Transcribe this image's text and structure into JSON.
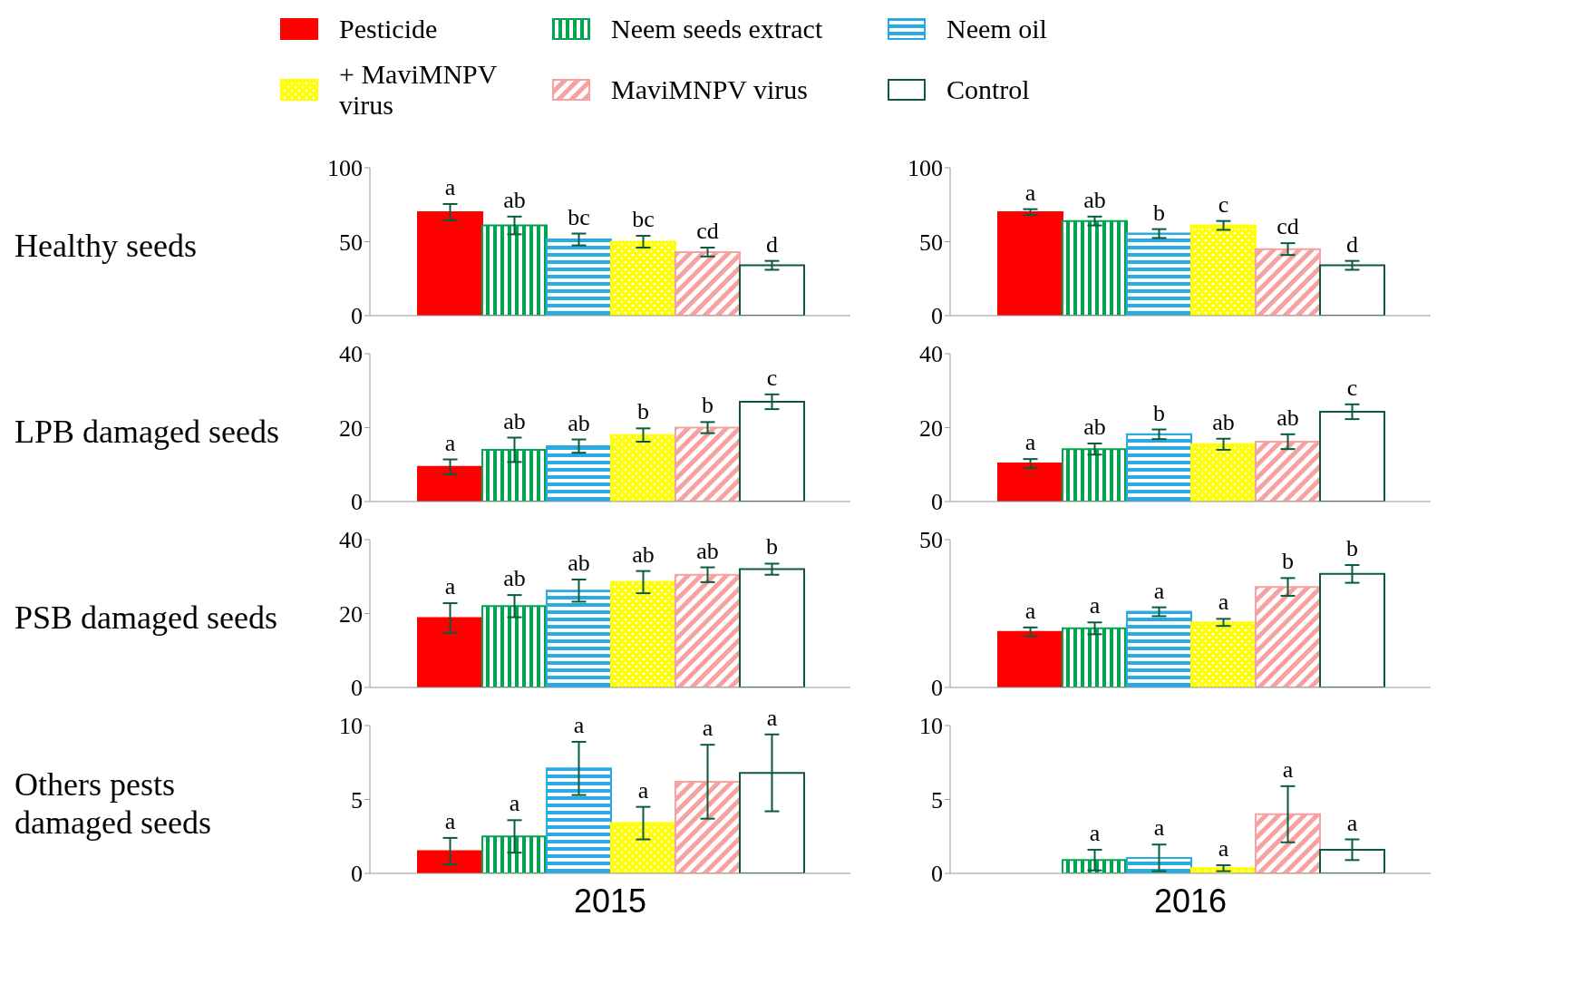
{
  "chart_data": [
    {
      "type": "bar",
      "ylabel": "Healthy seeds",
      "legend": "top",
      "tick_labels": "y",
      "categories": [
        null
      ],
      "ylim": [
        0,
        100
      ],
      "yticks": [
        0,
        50,
        100
      ],
      "series": [
        {
          "name": "Pesticide",
          "color": "#ff0000",
          "values": [
            70
          ],
          "errors": [
            5.5
          ],
          "value_labels": [
            "a"
          ]
        },
        {
          "name": "Neem seeds extract",
          "color": "#00a550",
          "values": [
            61
          ],
          "errors": [
            6
          ],
          "value_labels": [
            "ab"
          ]
        },
        {
          "name": "Neem oil",
          "color": "#29abe2",
          "values": [
            51.5
          ],
          "errors": [
            4
          ],
          "value_labels": [
            "bc"
          ]
        },
        {
          "name": "+ MaviMNPV virus",
          "color": "#ffff00",
          "values": [
            50
          ],
          "errors": [
            4
          ],
          "value_labels": [
            "bc"
          ]
        },
        {
          "name": "MaviMNPV virus",
          "color": "#f7a1a1",
          "values": [
            43
          ],
          "errors": [
            3
          ],
          "value_labels": [
            "cd"
          ]
        },
        {
          "name": "Control",
          "color": "#0b5a3e",
          "values": [
            34
          ],
          "errors": [
            3
          ],
          "value_labels": [
            "d"
          ]
        }
      ]
    },
    {
      "type": "bar",
      "tick_labels": "y",
      "categories": [
        null
      ],
      "ylim": [
        0,
        100
      ],
      "yticks": [
        0,
        50,
        100
      ],
      "series": [
        {
          "color": "#ff0000",
          "values": [
            70
          ],
          "errors": [
            2
          ],
          "value_labels": [
            "a"
          ]
        },
        {
          "color": "#00a550",
          "values": [
            64
          ],
          "errors": [
            3
          ],
          "value_labels": [
            "ab"
          ]
        },
        {
          "color": "#29abe2",
          "values": [
            55.5
          ],
          "errors": [
            3
          ],
          "value_labels": [
            "b"
          ]
        },
        {
          "color": "#ffff00",
          "values": [
            61
          ],
          "errors": [
            3
          ],
          "value_labels": [
            "c"
          ]
        },
        {
          "color": "#f7a1a1",
          "values": [
            45
          ],
          "errors": [
            4
          ],
          "value_labels": [
            "cd"
          ]
        },
        {
          "color": "#0b5a3e",
          "values": [
            34
          ],
          "errors": [
            3
          ],
          "value_labels": [
            "d"
          ]
        }
      ]
    },
    {
      "type": "bar",
      "ylabel": "LPB damaged seeds",
      "tick_labels": "y",
      "categories": [
        null
      ],
      "ylim": [
        0,
        40
      ],
      "yticks": [
        0,
        20,
        40
      ],
      "series": [
        {
          "color": "#ff0000",
          "values": [
            9.4
          ],
          "errors": [
            2
          ],
          "value_labels": [
            "a"
          ]
        },
        {
          "color": "#00a550",
          "values": [
            14
          ],
          "errors": [
            3.3
          ],
          "value_labels": [
            "ab"
          ]
        },
        {
          "color": "#29abe2",
          "values": [
            15
          ],
          "errors": [
            1.8
          ],
          "value_labels": [
            "ab"
          ]
        },
        {
          "color": "#ffff00",
          "values": [
            18
          ],
          "errors": [
            1.8
          ],
          "value_labels": [
            "b"
          ]
        },
        {
          "color": "#f7a1a1",
          "values": [
            20
          ],
          "errors": [
            1.5
          ],
          "value_labels": [
            "b"
          ]
        },
        {
          "color": "#0b5a3e",
          "values": [
            27
          ],
          "errors": [
            2
          ],
          "value_labels": [
            "c"
          ]
        }
      ]
    },
    {
      "type": "bar",
      "tick_labels": "y",
      "categories": [
        null
      ],
      "ylim": [
        0,
        40
      ],
      "yticks": [
        0,
        20,
        40
      ],
      "series": [
        {
          "color": "#ff0000",
          "values": [
            10.3
          ],
          "errors": [
            1.2
          ],
          "value_labels": [
            "a"
          ]
        },
        {
          "color": "#00a550",
          "values": [
            14.2
          ],
          "errors": [
            1.5
          ],
          "value_labels": [
            "ab"
          ]
        },
        {
          "color": "#29abe2",
          "values": [
            18.2
          ],
          "errors": [
            1.3
          ],
          "value_labels": [
            "b"
          ]
        },
        {
          "color": "#ffff00",
          "values": [
            15.5
          ],
          "errors": [
            1.5
          ],
          "value_labels": [
            "ab"
          ]
        },
        {
          "color": "#f7a1a1",
          "values": [
            16.2
          ],
          "errors": [
            2
          ],
          "value_labels": [
            "ab"
          ]
        },
        {
          "color": "#0b5a3e",
          "values": [
            24.3
          ],
          "errors": [
            2
          ],
          "value_labels": [
            "c"
          ]
        }
      ]
    },
    {
      "type": "bar",
      "ylabel": "PSB damaged seeds",
      "tick_labels": "y",
      "categories": [
        null
      ],
      "ylim": [
        0,
        40
      ],
      "yticks": [
        0,
        20,
        40
      ],
      "series": [
        {
          "color": "#ff0000",
          "values": [
            18.8
          ],
          "errors": [
            4
          ],
          "value_labels": [
            "a"
          ]
        },
        {
          "color": "#00a550",
          "values": [
            22
          ],
          "errors": [
            3
          ],
          "value_labels": [
            "ab"
          ]
        },
        {
          "color": "#29abe2",
          "values": [
            26.2
          ],
          "errors": [
            3
          ],
          "value_labels": [
            "ab"
          ]
        },
        {
          "color": "#ffff00",
          "values": [
            28.5
          ],
          "errors": [
            3
          ],
          "value_labels": [
            "ab"
          ]
        },
        {
          "color": "#f7a1a1",
          "values": [
            30.5
          ],
          "errors": [
            2
          ],
          "value_labels": [
            "ab"
          ]
        },
        {
          "color": "#0b5a3e",
          "values": [
            32
          ],
          "errors": [
            1.5
          ],
          "value_labels": [
            "b"
          ]
        }
      ]
    },
    {
      "type": "bar",
      "tick_labels": "y",
      "categories": [
        null
      ],
      "ylim": [
        0,
        50
      ],
      "yticks": [
        0,
        50
      ],
      "series": [
        {
          "color": "#ff0000",
          "values": [
            18.8
          ],
          "errors": [
            1.5
          ],
          "value_labels": [
            "a"
          ]
        },
        {
          "color": "#00a550",
          "values": [
            20
          ],
          "errors": [
            2
          ],
          "value_labels": [
            "a"
          ]
        },
        {
          "color": "#29abe2",
          "values": [
            25.6
          ],
          "errors": [
            1.5
          ],
          "value_labels": [
            "a"
          ]
        },
        {
          "color": "#ffff00",
          "values": [
            22
          ],
          "errors": [
            1.2
          ],
          "value_labels": [
            "a"
          ]
        },
        {
          "color": "#f7a1a1",
          "values": [
            34
          ],
          "errors": [
            3
          ],
          "value_labels": [
            "b"
          ]
        },
        {
          "color": "#0b5a3e",
          "values": [
            38.4
          ],
          "errors": [
            3
          ],
          "value_labels": [
            "b"
          ]
        }
      ]
    },
    {
      "type": "bar",
      "ylabel": "Others pests damaged seeds",
      "xlabel": "2015",
      "tick_labels": "y",
      "categories": [
        null
      ],
      "ylim": [
        0,
        10
      ],
      "yticks": [
        0,
        5,
        10
      ],
      "series": [
        {
          "color": "#ff0000",
          "values": [
            1.5
          ],
          "errors": [
            0.9
          ],
          "value_labels": [
            "a"
          ]
        },
        {
          "color": "#00a550",
          "values": [
            2.5
          ],
          "errors": [
            1.1
          ],
          "value_labels": [
            "a"
          ]
        },
        {
          "color": "#29abe2",
          "values": [
            7.1
          ],
          "errors": [
            1.8
          ],
          "value_labels": [
            "a"
          ]
        },
        {
          "color": "#ffff00",
          "values": [
            3.4
          ],
          "errors": [
            1.1
          ],
          "value_labels": [
            "a"
          ]
        },
        {
          "color": "#f7a1a1",
          "values": [
            6.2
          ],
          "errors": [
            2.5
          ],
          "value_labels": [
            "a"
          ]
        },
        {
          "color": "#0b5a3e",
          "values": [
            6.8
          ],
          "errors": [
            2.6
          ],
          "value_labels": [
            "a"
          ]
        }
      ]
    },
    {
      "type": "bar",
      "xlabel": "2016",
      "tick_labels": "y",
      "categories": [
        null
      ],
      "ylim": [
        0,
        10
      ],
      "yticks": [
        0,
        5,
        10
      ],
      "series": [
        {
          "color": "#ff0000",
          "values": [
            null
          ],
          "errors": [
            null
          ],
          "value_labels": [
            null
          ]
        },
        {
          "color": "#00a550",
          "values": [
            0.9
          ],
          "errors": [
            0.7
          ],
          "value_labels": [
            "a"
          ]
        },
        {
          "color": "#29abe2",
          "values": [
            1.05
          ],
          "errors": [
            0.9
          ],
          "value_labels": [
            "a"
          ]
        },
        {
          "color": "#ffff00",
          "values": [
            0.35
          ],
          "errors": [
            0.2
          ],
          "value_labels": [
            "a"
          ]
        },
        {
          "color": "#f7a1a1",
          "values": [
            4
          ],
          "errors": [
            1.9
          ],
          "value_labels": [
            "a"
          ]
        },
        {
          "color": "#0b5a3e",
          "values": [
            1.6
          ],
          "errors": [
            0.7
          ],
          "value_labels": [
            "a"
          ]
        }
      ]
    }
  ]
}
